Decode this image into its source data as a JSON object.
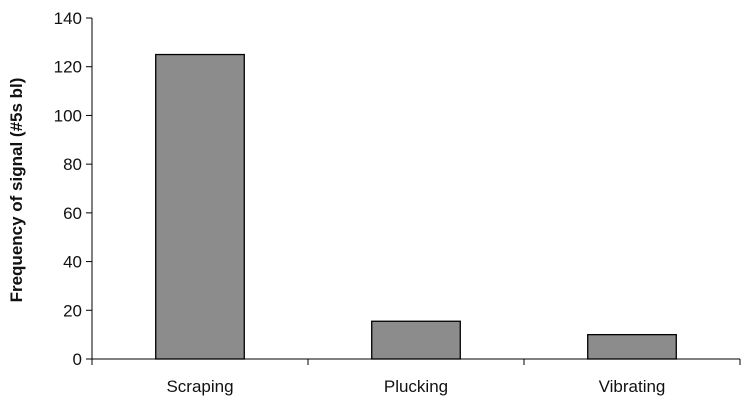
{
  "chart_data": {
    "type": "bar",
    "title": "",
    "xlabel": "",
    "ylabel": "Frequency of signal (#5s bl)",
    "categories": [
      "Scraping",
      "Plucking",
      "Vibrating"
    ],
    "values": [
      125,
      15.5,
      10
    ],
    "ylim": [
      0,
      140
    ],
    "yticks": [
      "0",
      "20",
      "40",
      "60",
      "80",
      "100",
      "120",
      "140"
    ],
    "grid": false,
    "legend": "none",
    "bar_color": "#8c8c8c",
    "bar_outline_color": "#000000"
  }
}
